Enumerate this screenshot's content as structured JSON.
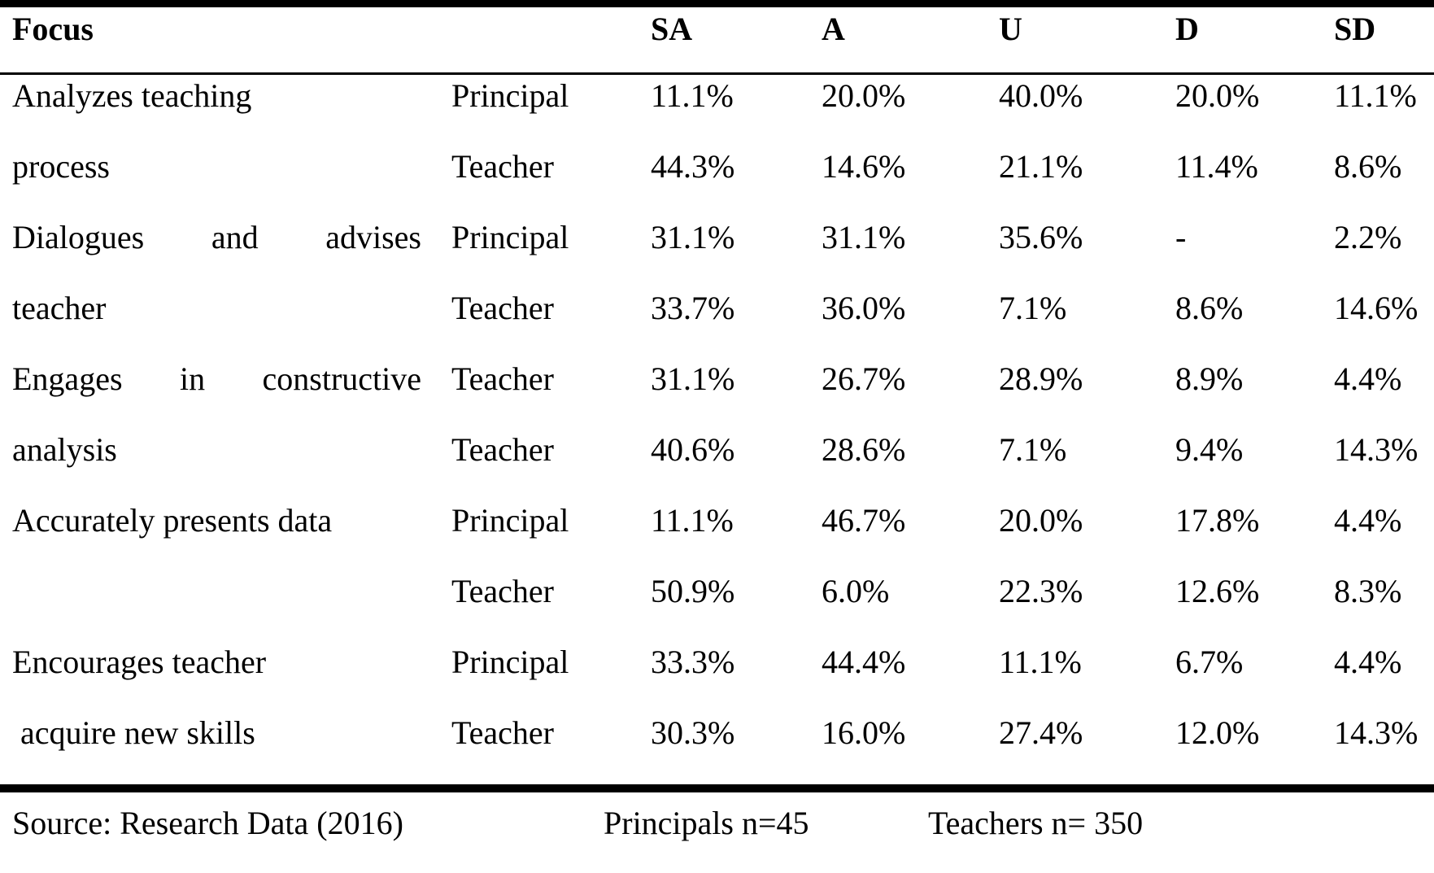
{
  "table": {
    "header": {
      "focus": "Focus",
      "cols": [
        "SA",
        "A",
        "U",
        "D",
        "SD"
      ]
    },
    "rows": [
      {
        "focus": "Analyzes teaching",
        "justify": false,
        "role": "Principal",
        "values": [
          "11.1%",
          "20.0%",
          "40.0%",
          "20.0%",
          "11.1%"
        ]
      },
      {
        "focus": "process",
        "justify": false,
        "role": "Teacher",
        "values": [
          "44.3%",
          "14.6%",
          "21.1%",
          "11.4%",
          "8.6%"
        ]
      },
      {
        "focus": "Dialogues and advises",
        "justify": true,
        "role": "Principal",
        "values": [
          "31.1%",
          "31.1%",
          "35.6%",
          "-",
          "2.2%"
        ]
      },
      {
        "focus": "teacher",
        "justify": false,
        "role": "Teacher",
        "values": [
          "33.7%",
          "36.0%",
          "7.1%",
          "8.6%",
          "14.6%"
        ]
      },
      {
        "focus": "Engages in constructive",
        "justify": true,
        "role": "Teacher",
        "values": [
          "31.1%",
          "26.7%",
          "28.9%",
          "8.9%",
          "4.4%"
        ]
      },
      {
        "focus": "analysis",
        "justify": false,
        "role": "Teacher",
        "values": [
          "40.6%",
          "28.6%",
          "7.1%",
          "9.4%",
          "14.3%"
        ]
      },
      {
        "focus": "Accurately presents data",
        "justify": false,
        "role": "Principal",
        "values": [
          "11.1%",
          "46.7%",
          "20.0%",
          "17.8%",
          "4.4%"
        ]
      },
      {
        "focus": "",
        "justify": false,
        "role": "Teacher",
        "values": [
          "50.9%",
          "6.0%",
          "22.3%",
          "12.6%",
          "8.3%"
        ]
      },
      {
        "focus": "Encourages teacher",
        "justify": false,
        "role": "Principal",
        "values": [
          "33.3%",
          "44.4%",
          "11.1%",
          "6.7%",
          "4.4%"
        ]
      },
      {
        "focus": " acquire new skills",
        "justify": false,
        "role": "Teacher",
        "values": [
          "30.3%",
          "16.0%",
          "27.4%",
          "12.0%",
          "14.3%"
        ]
      }
    ],
    "footer": {
      "source": "Source: Research Data (2016)",
      "principals": "Principals n=45",
      "teachers": "Teachers n= 350"
    }
  }
}
